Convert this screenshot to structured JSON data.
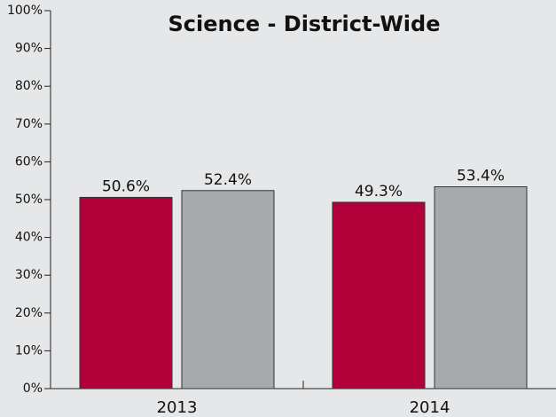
{
  "chart_data": {
    "type": "bar",
    "title": "Science - District-Wide",
    "categories": [
      "2013",
      "2014"
    ],
    "series": [
      {
        "color": "#b1003a",
        "values": [
          50.6,
          49.3
        ],
        "value_labels": [
          "50.6%",
          "49.3%"
        ]
      },
      {
        "color": "#a7a9ac",
        "values": [
          52.4,
          53.4
        ],
        "value_labels": [
          "52.4%",
          "53.4%"
        ]
      }
    ],
    "ylim": [
      0,
      100
    ],
    "yticks": [
      {
        "value": 0,
        "label": "0%"
      },
      {
        "value": 10,
        "label": "10%"
      },
      {
        "value": 20,
        "label": "20%"
      },
      {
        "value": 30,
        "label": "30%"
      },
      {
        "value": 40,
        "label": "40%"
      },
      {
        "value": 50,
        "label": "50%"
      },
      {
        "value": 60,
        "label": "60%"
      },
      {
        "value": 70,
        "label": "70%"
      },
      {
        "value": 80,
        "label": "80%"
      },
      {
        "value": 90,
        "label": "90%"
      },
      {
        "value": 100,
        "label": "100%"
      }
    ],
    "grid": false
  }
}
